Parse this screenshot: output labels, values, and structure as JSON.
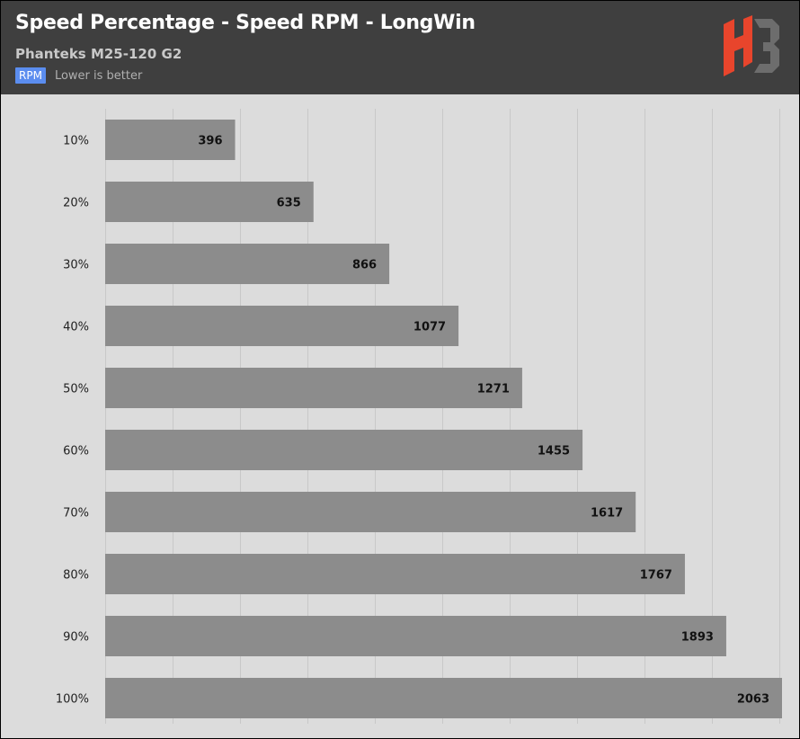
{
  "header": {
    "title": "Speed Percentage - Speed RPM - LongWin",
    "subtitle": "Phanteks M25-120 G2",
    "legend_label": "RPM",
    "legend_note": "Lower is better",
    "logo_icon": "hb-logo-icon"
  },
  "colors": {
    "header_bg": "#3f3f3f",
    "plot_bg": "#dcdcdc",
    "bar": "#8c8c8c",
    "legend_badge": "#5b8def",
    "logo_red": "#e8452c",
    "logo_gray": "#6d6d6d"
  },
  "chart_data": {
    "type": "bar",
    "orientation": "horizontal",
    "categories": [
      "10%",
      "20%",
      "30%",
      "40%",
      "50%",
      "60%",
      "70%",
      "80%",
      "90%",
      "100%"
    ],
    "series": [
      {
        "name": "RPM",
        "values": [
          396,
          635,
          866,
          1077,
          1271,
          1455,
          1617,
          1767,
          1893,
          2063
        ]
      }
    ],
    "xlim": [
      0,
      2063
    ],
    "grid": true,
    "legend_position": "top-left"
  }
}
